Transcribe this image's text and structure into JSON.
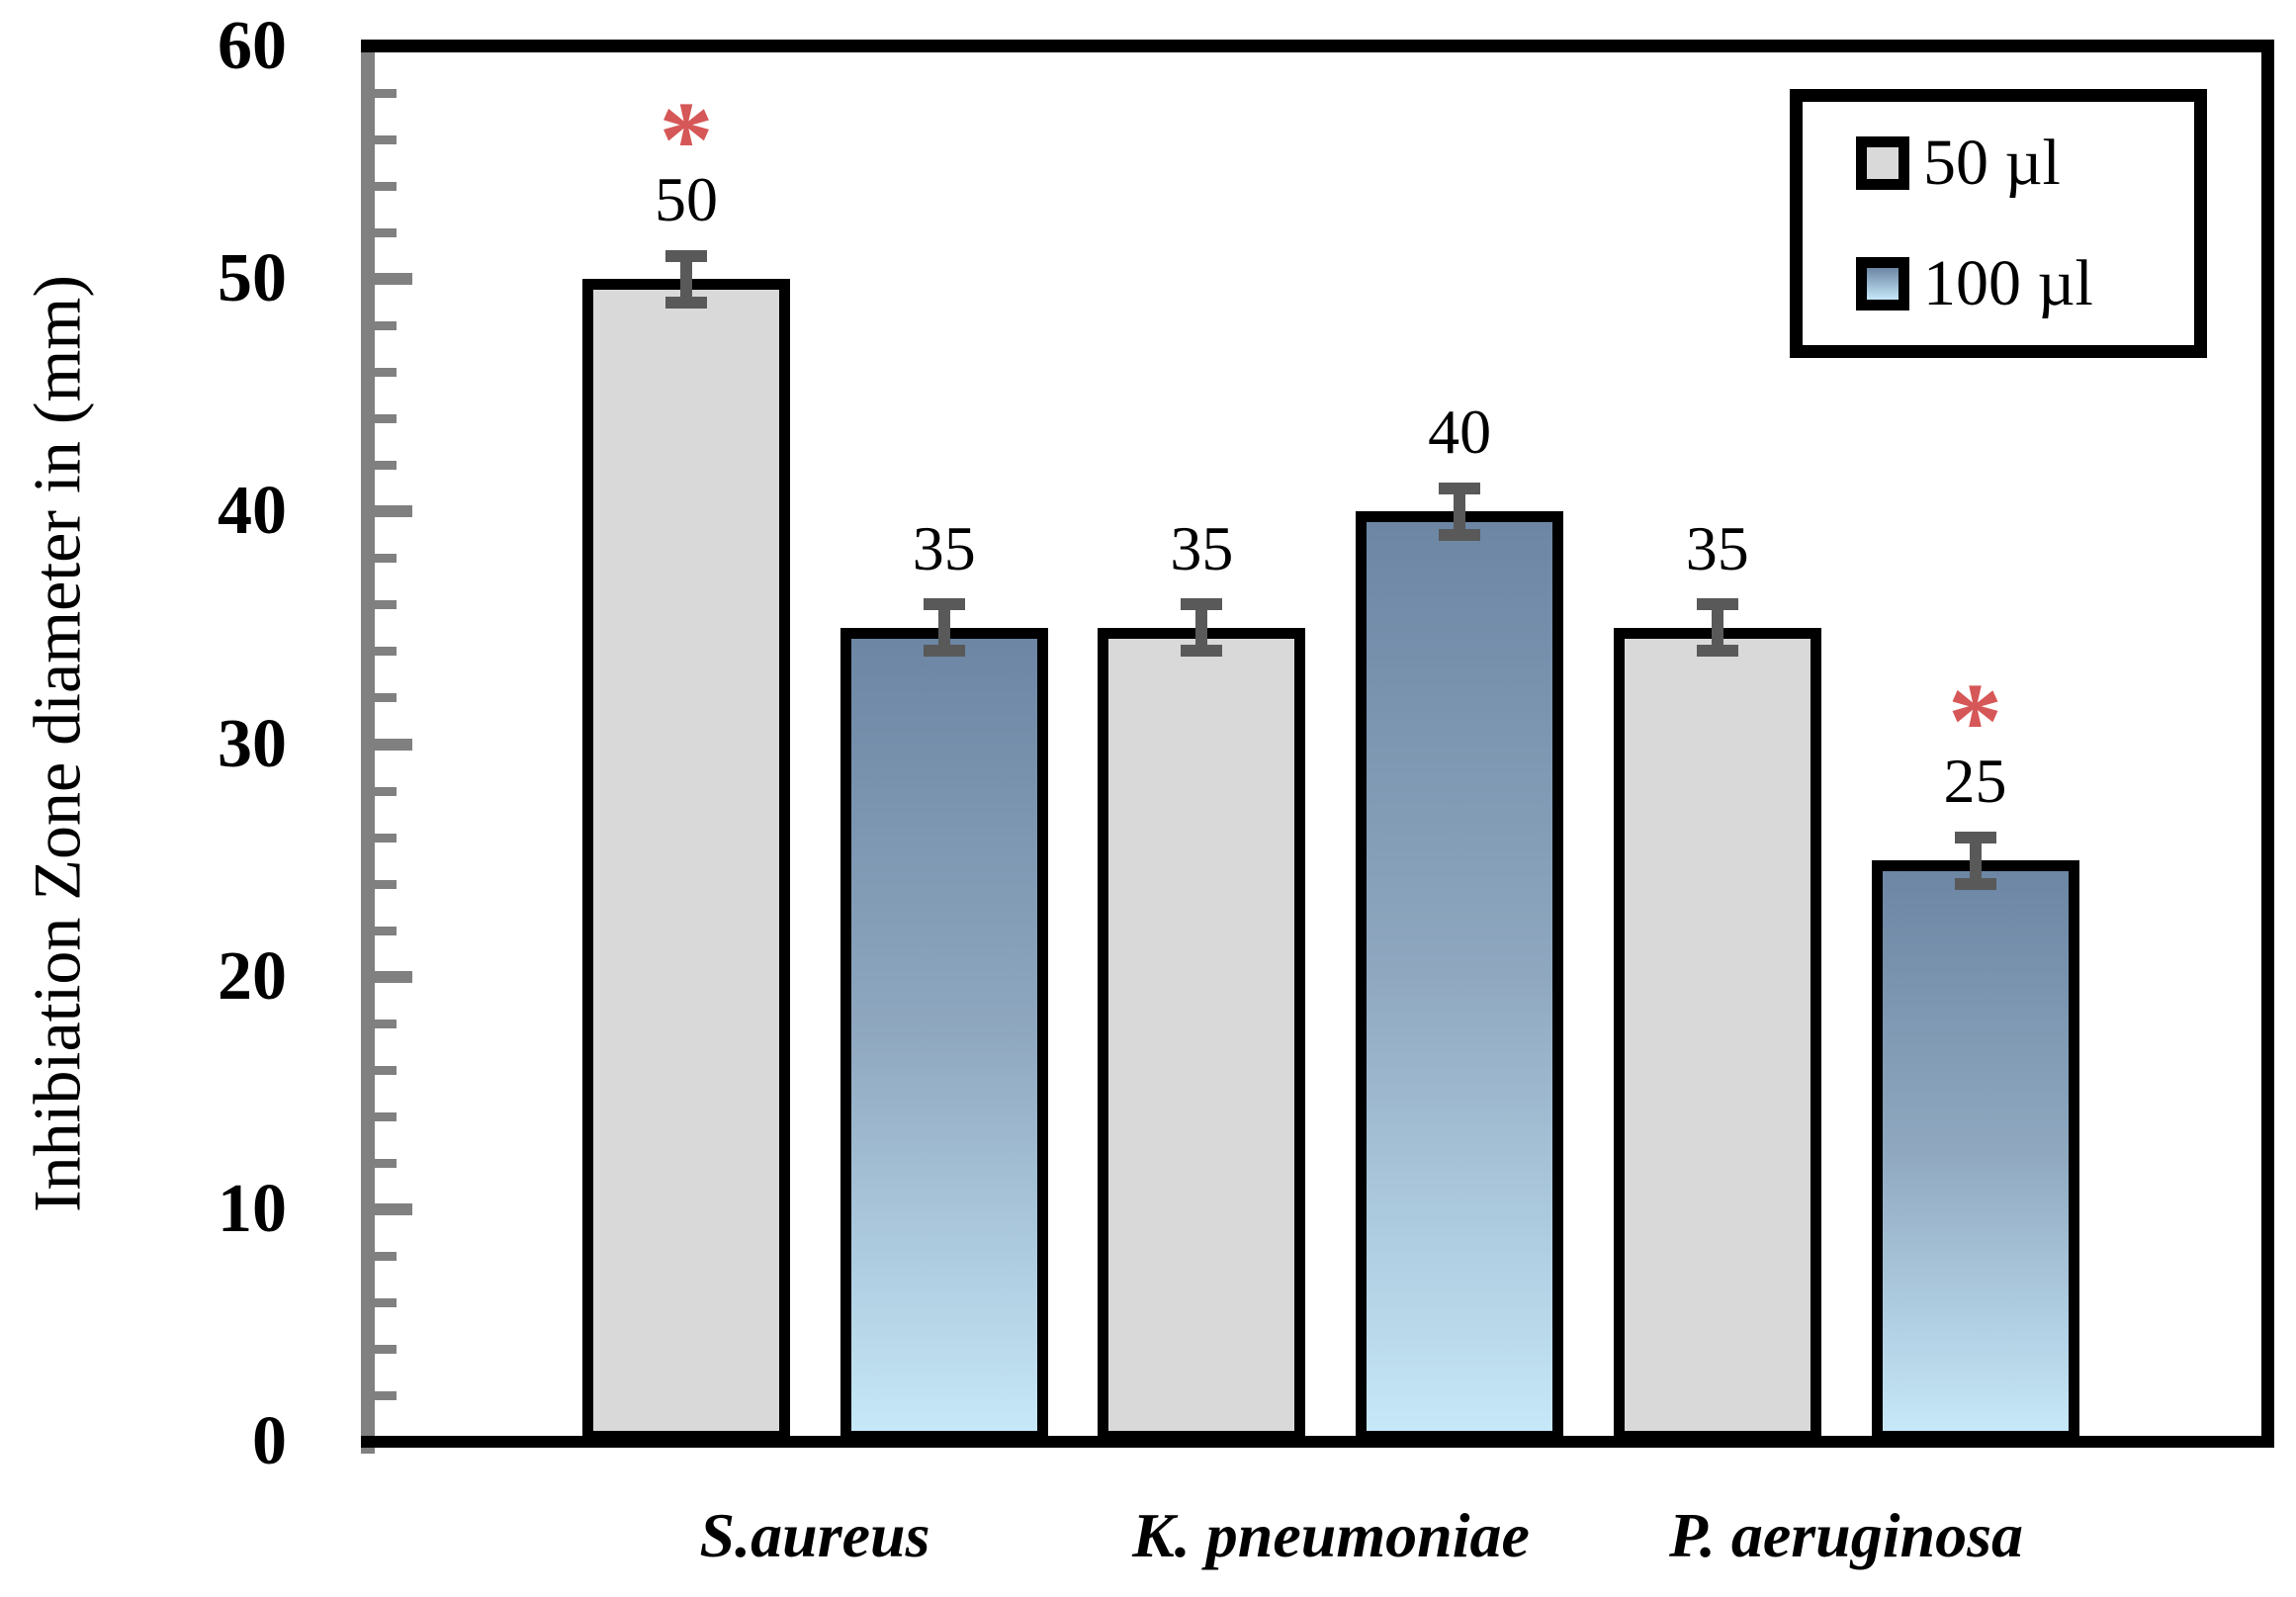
{
  "chart_data": {
    "type": "bar",
    "title": "",
    "xlabel": "",
    "ylabel": "Inhibiation Zone diameter in (mm)",
    "categories": [
      "S.aureus",
      "K. pneumoniae",
      "P. aeruginosa"
    ],
    "series": [
      {
        "name": "50 µl",
        "fill": "#d9d9d9",
        "values": [
          50,
          35,
          35
        ],
        "significant": [
          true,
          false,
          false
        ]
      },
      {
        "name": "100 µl",
        "fill_top": "#6c86a4",
        "fill_mid": "#8fa8c0",
        "fill_bottom": "#c6e8f8",
        "values": [
          35,
          40,
          25
        ],
        "significant": [
          false,
          false,
          true
        ]
      }
    ],
    "data_labels": [
      [
        50,
        35,
        35
      ],
      [
        35,
        40,
        25
      ]
    ],
    "ylim": [
      0,
      60
    ],
    "ytick_major_step": 10,
    "ytick_minor_step": 2,
    "yticks": [
      0,
      10,
      20,
      30,
      40,
      50,
      60
    ],
    "error_bar_plus_minus": 1,
    "significance_marker": "*",
    "significance_color": "#d65757",
    "error_bar_color": "#595959",
    "axis_line_color": "#808080",
    "legend_position": "top-right",
    "grid": "off"
  }
}
